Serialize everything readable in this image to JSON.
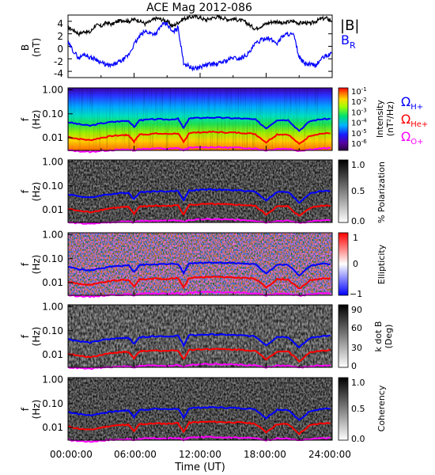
{
  "figure": {
    "title": "ACE Mag 2012-086",
    "xlabel": "Time (UT)",
    "x_ticks": [
      "00:00:00",
      "06:00:00",
      "12:00:00",
      "18:00:00",
      "24:00:00"
    ]
  },
  "chart_data": [
    {
      "type": "line",
      "panel": "magnetic-field",
      "ylabel": [
        "B",
        "(nT)"
      ],
      "y_ticks": [
        "4",
        "2",
        "0",
        "-2",
        "-4"
      ],
      "ylim": [
        -5,
        5
      ],
      "xlim": [
        0,
        24
      ],
      "legend": {
        "b_total": "|B|",
        "b_radial": "B",
        "b_radial_sub": "R"
      },
      "series": [
        {
          "key": "b_total",
          "color": "#000000",
          "x": [
            0,
            0.5,
            1,
            1.5,
            2,
            2.5,
            3,
            3.5,
            4,
            4.5,
            5,
            5.5,
            6,
            6.5,
            7,
            7.5,
            8,
            8.5,
            9,
            9.5,
            10,
            10.5,
            11,
            11.5,
            12,
            12.5,
            13,
            13.5,
            14,
            14.5,
            15,
            15.5,
            16,
            16.5,
            17,
            17.5,
            18,
            18.5,
            19,
            19.5,
            20,
            20.5,
            21,
            21.5,
            22,
            22.5,
            23,
            23.5,
            24
          ],
          "y": [
            3.0,
            2.6,
            2.0,
            2.4,
            2.2,
            3.4,
            3.2,
            3.8,
            3.5,
            4.0,
            4.2,
            4.0,
            4.3,
            4.1,
            3.6,
            4.0,
            4.5,
            4.3,
            4.0,
            3.2,
            3.8,
            4.4,
            4.6,
            4.8,
            4.6,
            4.2,
            4.5,
            4.7,
            4.6,
            4.3,
            4.4,
            4.2,
            4.0,
            3.4,
            2.8,
            3.2,
            3.6,
            3.9,
            4.0,
            3.6,
            3.9,
            4.0,
            3.7,
            3.8,
            3.6,
            4.0,
            4.4,
            4.5,
            4.0
          ]
        },
        {
          "key": "b_radial",
          "color": "#0000ff",
          "x": [
            0,
            0.5,
            1,
            1.5,
            2,
            2.5,
            3,
            3.5,
            4,
            4.5,
            5,
            5.5,
            6,
            6.5,
            7,
            7.5,
            8,
            8.5,
            9,
            9.5,
            10,
            10.5,
            11,
            11.5,
            12,
            12.5,
            13,
            13.5,
            14,
            14.5,
            15,
            15.5,
            16,
            16.5,
            17,
            17.5,
            18,
            18.5,
            19,
            19.5,
            20,
            20.5,
            21,
            21.5,
            22,
            22.5,
            23,
            23.5,
            24
          ],
          "y": [
            0.5,
            -0.8,
            -1.9,
            -1.2,
            -1.8,
            -2.0,
            -2.6,
            -3.0,
            -3.1,
            -2.6,
            -2.2,
            -1.4,
            0.3,
            1.6,
            2.4,
            2.1,
            2.0,
            3.4,
            3.6,
            2.2,
            3.0,
            -2.6,
            -3.2,
            -3.6,
            -3.3,
            -3.0,
            -2.8,
            -2.9,
            -2.5,
            -2.2,
            -1.8,
            -2.0,
            -1.6,
            -1.0,
            0.4,
            0.9,
            1.4,
            1.0,
            0.5,
            1.7,
            2.0,
            1.8,
            -1.8,
            -2.8,
            -2.9,
            -3.1,
            -2.0,
            -1.5,
            -1.2
          ]
        }
      ]
    },
    {
      "type": "heatmap",
      "panel": "intensity",
      "ylabel": [
        "f",
        "(Hz)"
      ],
      "y_ticks": [
        "1.00",
        "0.10",
        "0.01"
      ],
      "ylim": [
        0.003,
        1.2
      ],
      "y_scale": "log",
      "colorbar": {
        "label": "Intensity",
        "units": "(nT²/Hz)",
        "colormap": "rainbow",
        "tick_base": "10",
        "tick_exponents": [
          "-1",
          "-2",
          "-3",
          "-4",
          "-5",
          "-6"
        ]
      },
      "legend": {
        "h_plus": "Ω",
        "h_plus_sub": "H+",
        "he_plus": "Ω",
        "he_plus_sub": "He+",
        "o_plus": "Ω",
        "o_plus_sub": "O+"
      }
    },
    {
      "type": "heatmap",
      "panel": "polarization",
      "ylabel": [
        "f",
        "(Hz)"
      ],
      "y_ticks": [
        "1.00",
        "0.10",
        "0.01"
      ],
      "y_scale": "log",
      "colorbar": {
        "label": "% Polarization",
        "colormap": "gray",
        "ticks": [
          "1.0",
          "0.5",
          "0.0"
        ]
      }
    },
    {
      "type": "heatmap",
      "panel": "ellipticity",
      "ylabel": [
        "f",
        "(Hz)"
      ],
      "y_ticks": [
        "1.00",
        "0.10",
        "0.01"
      ],
      "y_scale": "log",
      "colorbar": {
        "label": "Ellipticity",
        "colormap": "blue-white-red",
        "ticks": [
          "1",
          "0",
          "−1"
        ]
      }
    },
    {
      "type": "heatmap",
      "panel": "k-dot-b",
      "ylabel": [
        "f",
        "(Hz)"
      ],
      "y_ticks": [
        "1.00",
        "0.10",
        "0.01"
      ],
      "y_scale": "log",
      "colorbar": {
        "label": "k dot B",
        "units": "(Deg)",
        "colormap": "gray",
        "ticks": [
          "90",
          "60",
          "30",
          "0"
        ]
      }
    },
    {
      "type": "heatmap",
      "panel": "coherency",
      "ylabel": [
        "f",
        "(Hz)"
      ],
      "y_ticks": [
        "1.00",
        "0.10",
        "0.01"
      ],
      "y_scale": "log",
      "colorbar": {
        "label": "Coherency",
        "colormap": "gray",
        "ticks": [
          "1.0",
          "0.5",
          "0.0"
        ]
      }
    }
  ],
  "gyrofrequency_lines": {
    "x": [
      0,
      1,
      2,
      3,
      4,
      5,
      5.5,
      6,
      6.5,
      7,
      8,
      9,
      10,
      10.5,
      11,
      12,
      13,
      14,
      15,
      16,
      17,
      18,
      19,
      20,
      21,
      22,
      23,
      24
    ],
    "h_plus": {
      "color": "#0000ff",
      "y": [
        0.045,
        0.037,
        0.032,
        0.04,
        0.046,
        0.05,
        0.052,
        0.028,
        0.055,
        0.056,
        0.06,
        0.058,
        0.062,
        0.025,
        0.064,
        0.068,
        0.07,
        0.068,
        0.066,
        0.063,
        0.058,
        0.025,
        0.056,
        0.055,
        0.02,
        0.05,
        0.06,
        0.062
      ]
    },
    "he_plus": {
      "color": "#ff0000",
      "y": [
        0.011,
        0.009,
        0.008,
        0.01,
        0.012,
        0.013,
        0.013,
        0.007,
        0.014,
        0.014,
        0.015,
        0.0145,
        0.0155,
        0.0065,
        0.016,
        0.017,
        0.0175,
        0.017,
        0.0165,
        0.016,
        0.0145,
        0.0065,
        0.014,
        0.0138,
        0.0055,
        0.0125,
        0.015,
        0.0155
      ]
    },
    "o_plus": {
      "color": "#ff00ff",
      "y": [
        0.003,
        0.0028,
        0.0026,
        0.0029,
        0.0031,
        0.0032,
        0.0033,
        0.003,
        0.0034,
        0.0035,
        0.0036,
        0.0035,
        0.0037,
        0.0031,
        0.0038,
        0.004,
        0.0041,
        0.004,
        0.0039,
        0.0038,
        0.0036,
        0.003,
        0.0035,
        0.0035,
        0.0029,
        0.0033,
        0.0036,
        0.0037
      ]
    }
  }
}
